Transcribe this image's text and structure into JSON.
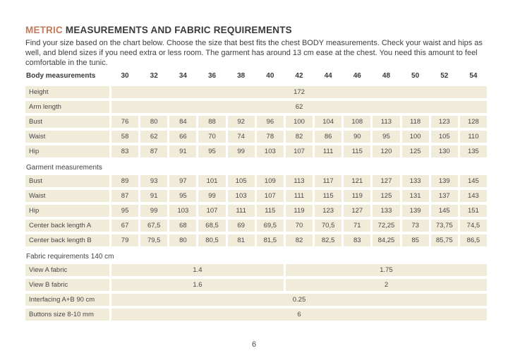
{
  "header": {
    "title_accent": "METRIC",
    "title_rest": "MEASUREMENTS AND FABRIC REQUIREMENTS",
    "intro": "Find your size based on the chart below. Choose the size that best fits the chest BODY measurements.  Check your waist and hips as well, and blend sizes if you need extra or less room. The garment has around 13 cm ease at the chest. You need this amount to feel comfortable in the tunic."
  },
  "table": {
    "corner_label": "Body measurements",
    "sizes": [
      "30",
      "32",
      "34",
      "36",
      "38",
      "40",
      "42",
      "44",
      "46",
      "48",
      "50",
      "52",
      "54"
    ],
    "rows": [
      {
        "kind": "span",
        "label": "Height",
        "value": "172"
      },
      {
        "kind": "span",
        "label": "Arm length",
        "value": "62"
      },
      {
        "kind": "cells",
        "label": "Bust",
        "values": [
          "76",
          "80",
          "84",
          "88",
          "92",
          "96",
          "100",
          "104",
          "108",
          "113",
          "118",
          "123",
          "128"
        ]
      },
      {
        "kind": "cells",
        "label": "Waist",
        "values": [
          "58",
          "62",
          "66",
          "70",
          "74",
          "78",
          "82",
          "86",
          "90",
          "95",
          "100",
          "105",
          "110"
        ]
      },
      {
        "kind": "cells",
        "label": "Hip",
        "values": [
          "83",
          "87",
          "91",
          "95",
          "99",
          "103",
          "107",
          "111",
          "115",
          "120",
          "125",
          "130",
          "135"
        ]
      },
      {
        "kind": "section",
        "label": "Garment measurements"
      },
      {
        "kind": "cells",
        "label": "Bust",
        "values": [
          "89",
          "93",
          "97",
          "101",
          "105",
          "109",
          "113",
          "117",
          "121",
          "127",
          "133",
          "139",
          "145"
        ]
      },
      {
        "kind": "cells",
        "label": "Waist",
        "values": [
          "87",
          "91",
          "95",
          "99",
          "103",
          "107",
          "111",
          "115",
          "119",
          "125",
          "131",
          "137",
          "143"
        ]
      },
      {
        "kind": "cells",
        "label": "Hip",
        "values": [
          "95",
          "99",
          "103",
          "107",
          "111",
          "115",
          "119",
          "123",
          "127",
          "133",
          "139",
          "145",
          "151"
        ]
      },
      {
        "kind": "cells",
        "label": "Center back length A",
        "values": [
          "67",
          "67,5",
          "68",
          "68,5",
          "69",
          "69,5",
          "70",
          "70,5",
          "71",
          "72,25",
          "73",
          "73,75",
          "74,5"
        ]
      },
      {
        "kind": "cells",
        "label": "Center back length B",
        "values": [
          "79",
          "79,5",
          "80",
          "80,5",
          "81",
          "81,5",
          "82",
          "82,5",
          "83",
          "84,25",
          "85",
          "85,75",
          "86,5"
        ]
      },
      {
        "kind": "section",
        "label": "Fabric requirements 140 cm"
      },
      {
        "kind": "span2",
        "label": "View A fabric",
        "values": [
          "1.4",
          "1.75"
        ]
      },
      {
        "kind": "span2",
        "label": "View B fabric",
        "values": [
          "1.6",
          "2"
        ]
      },
      {
        "kind": "span",
        "label": "Interfacing  A+B 90 cm",
        "value": "0.25"
      },
      {
        "kind": "span",
        "label": "Buttons size 8-10 mm",
        "value": "6"
      }
    ]
  },
  "footer": {
    "page_number": "6"
  },
  "colors": {
    "accent": "#c4795a",
    "row_bg": "#f1ebd9",
    "text": "#3d3d3d"
  }
}
